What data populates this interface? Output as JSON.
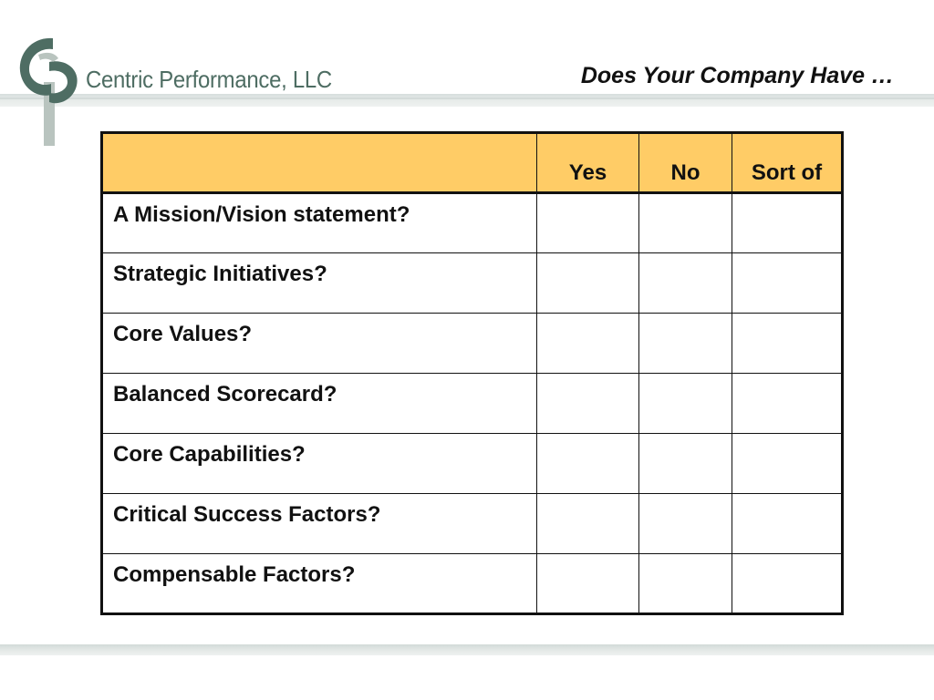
{
  "brand": {
    "company_name": "Centric Performance, LLC",
    "logo": "cp-monogram-logo",
    "logo_colors": {
      "primary": "#4e6d63",
      "secondary": "#b9c4bf"
    }
  },
  "slide": {
    "title": "Does Your Company Have …"
  },
  "table": {
    "header_color": "#ffcc66",
    "columns": [
      "",
      "Yes",
      "No",
      "Sort of"
    ],
    "rows": [
      {
        "question": "A Mission/Vision statement?",
        "yes": "",
        "no": "",
        "sort_of": ""
      },
      {
        "question": "Strategic Initiatives?",
        "yes": "",
        "no": "",
        "sort_of": ""
      },
      {
        "question": "Core Values?",
        "yes": "",
        "no": "",
        "sort_of": ""
      },
      {
        "question": "Balanced Scorecard?",
        "yes": "",
        "no": "",
        "sort_of": ""
      },
      {
        "question": "Core Capabilities?",
        "yes": "",
        "no": "",
        "sort_of": ""
      },
      {
        "question": "Critical Success Factors?",
        "yes": "",
        "no": "",
        "sort_of": ""
      },
      {
        "question": "Compensable Factors?",
        "yes": "",
        "no": "",
        "sort_of": ""
      }
    ]
  }
}
